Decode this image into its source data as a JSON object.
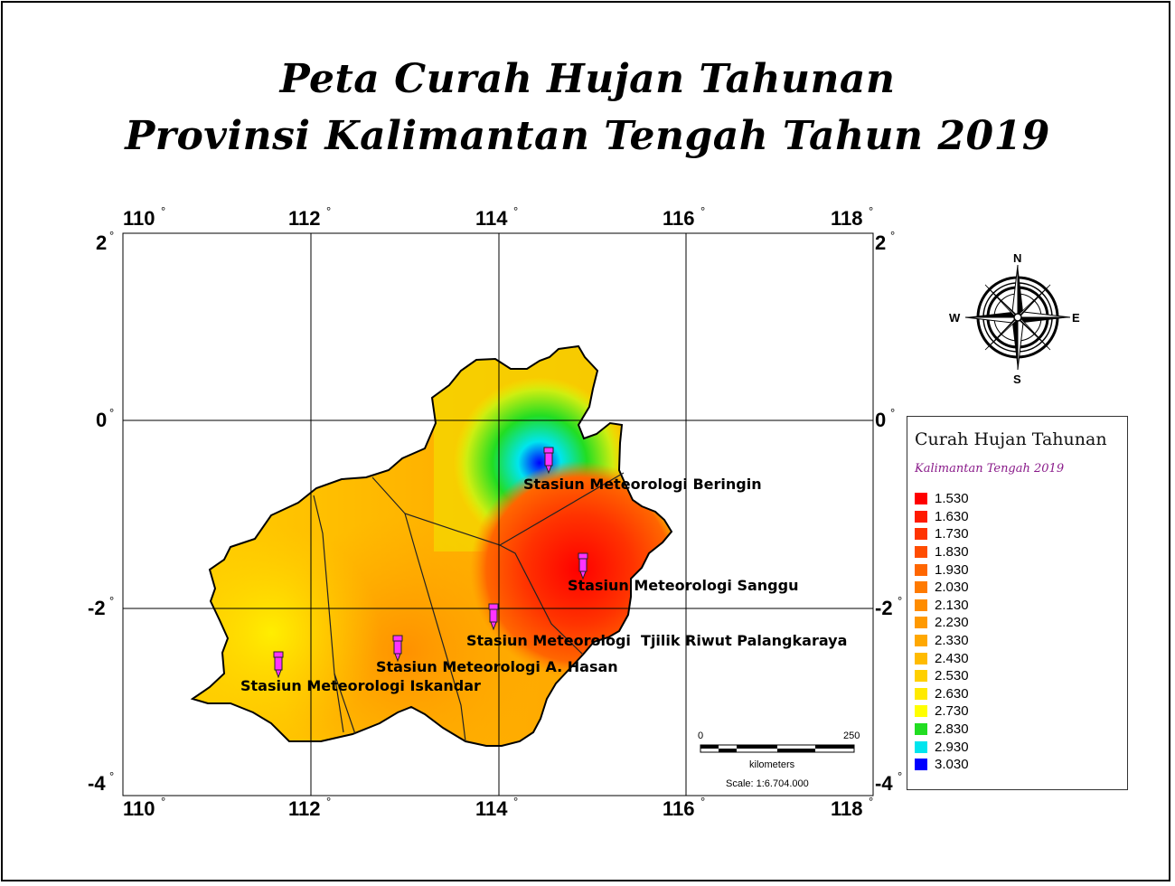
{
  "title": {
    "line1": "Peta Curah Hujan Tahunan",
    "line2": "Provinsi Kalimantan Tengah Tahun 2019"
  },
  "axes": {
    "longitude_labels": [
      "110",
      "112",
      "114",
      "116",
      "118"
    ],
    "latitude_labels": [
      "2",
      "0",
      "-2",
      "-4"
    ],
    "degree_symbol": "°"
  },
  "stations": [
    {
      "label": "Stasiun Meteorologi Beringin",
      "lon": 114.52,
      "lat": -0.45
    },
    {
      "label": "Stasiun Meteorologi Sanggu",
      "lon": 114.9,
      "lat": -1.55
    },
    {
      "label": "Stasiun Meteorologi  Tjilik Riwut Palangkaraya",
      "lon": 113.93,
      "lat": -2.12
    },
    {
      "label": "Stasiun Meteorologi A. Hasan",
      "lon": 112.93,
      "lat": -2.48
    },
    {
      "label": "Stasiun Meteorologi Iskandar",
      "lon": 111.63,
      "lat": -2.68
    }
  ],
  "compass": {
    "north": "N",
    "east": "E",
    "south": "S",
    "west": "W"
  },
  "scale_bar": {
    "start": "0",
    "end": "250",
    "unit": "kilometers",
    "scale": "Scale: 1:6.704.000"
  },
  "legend": {
    "title": "Curah Hujan Tahunan",
    "subtitle": "Kalimantan Tengah 2019",
    "items": [
      {
        "value": "1.530",
        "color": "#ff0000"
      },
      {
        "value": "1.630",
        "color": "#ff1a00"
      },
      {
        "value": "1.730",
        "color": "#ff3300"
      },
      {
        "value": "1.830",
        "color": "#ff4c00"
      },
      {
        "value": "1.930",
        "color": "#ff6600"
      },
      {
        "value": "2.030",
        "color": "#ff7a00"
      },
      {
        "value": "2.130",
        "color": "#ff8c00"
      },
      {
        "value": "2.230",
        "color": "#ff9900"
      },
      {
        "value": "2.330",
        "color": "#ffa800"
      },
      {
        "value": "2.430",
        "color": "#ffbb00"
      },
      {
        "value": "2.530",
        "color": "#ffd000"
      },
      {
        "value": "2.630",
        "color": "#ffea00"
      },
      {
        "value": "2.730",
        "color": "#ffff00"
      },
      {
        "value": "2.830",
        "color": "#22dd22"
      },
      {
        "value": "2.930",
        "color": "#00e5ee"
      },
      {
        "value": "3.030",
        "color": "#0000ff"
      }
    ]
  },
  "colors": {
    "station_marker": "#ff33ff",
    "grid": "#000000"
  }
}
